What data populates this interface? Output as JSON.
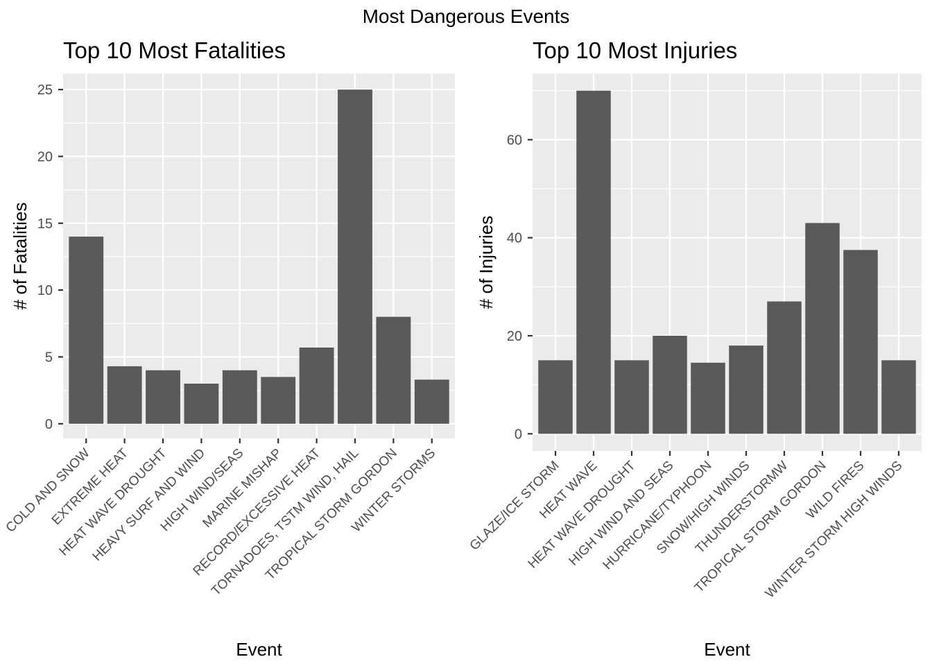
{
  "figure": {
    "title": "Most Dangerous Events"
  },
  "chart_data": [
    {
      "type": "bar",
      "title": "Top 10 Most Fatalities",
      "xlabel": "Event",
      "ylabel": "# of Fatalities",
      "ylim": [
        -1.1,
        26.2
      ],
      "yticks": [
        0,
        5,
        10,
        15,
        20,
        25
      ],
      "grid": true,
      "color": "#595959",
      "categories": [
        "COLD AND SNOW",
        "EXTREME HEAT",
        "HEAT WAVE DROUGHT",
        "HEAVY SURF AND WIND",
        "HIGH WIND/SEAS",
        "MARINE MISHAP",
        "RECORD/EXCESSIVE HEAT",
        "TORNADOES, TSTM WIND, HAIL",
        "TROPICAL STORM GORDON",
        "WINTER STORMS"
      ],
      "values": [
        14,
        4.3,
        4,
        3,
        4,
        3.5,
        5.7,
        25,
        8,
        3.3
      ]
    },
    {
      "type": "bar",
      "title": "Top 10 Most Injuries",
      "xlabel": "Event",
      "ylabel": "# of Injuries",
      "ylim": [
        -3.5,
        73.5
      ],
      "yticks": [
        0,
        20,
        40,
        60
      ],
      "grid": true,
      "color": "#595959",
      "categories": [
        "GLAZE/ICE STORM",
        "HEAT WAVE",
        "HEAT WAVE DROUGHT",
        "HIGH WIND AND SEAS",
        "HURRICANE/TYPHOON",
        "SNOW/HIGH WINDS",
        "THUNDERSTORMW",
        "TROPICAL STORM GORDON",
        "WILD FIRES",
        "WINTER STORM HIGH WINDS"
      ],
      "values": [
        15,
        70,
        15,
        20,
        14.5,
        18,
        27,
        43,
        37.5,
        15
      ]
    }
  ]
}
